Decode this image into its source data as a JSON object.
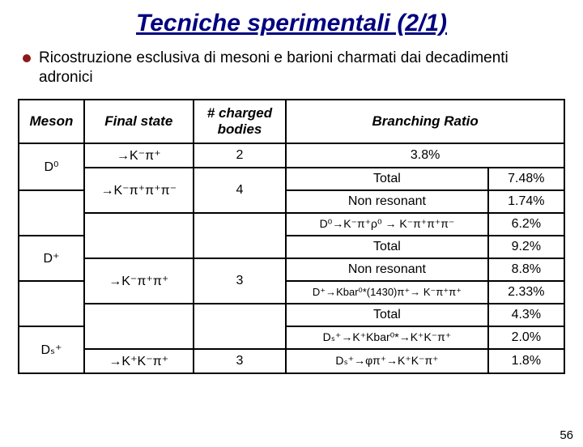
{
  "title": "Tecniche sperimentali (2/1)",
  "subtitle": "Ricostruzione esclusiva di mesoni e barioni charmati dai decadimenti adronici",
  "colors": {
    "title_color": "#000080",
    "bullet_color": "#8b1a1a",
    "border_color": "#000000",
    "background": "#ffffff"
  },
  "headers": {
    "meson": "Meson",
    "final_state": "Final state",
    "bodies": "# charged bodies",
    "br": "Branching Ratio"
  },
  "rows": {
    "d0_meson": "D⁰",
    "d0_fs1": "→K⁻π⁺",
    "d0_b1": "2",
    "d0_br1": "3.8%",
    "d0_total_lab": "Total",
    "d0_total_val": "7.48%",
    "d0_fs2": "→K⁻π⁺π⁺π⁻",
    "d0_b2": "4",
    "d0_nr_lab": "Non resonant",
    "d0_nr_val": "1.74%",
    "d0_ch_lab": "D⁰→K⁻π⁺ρ⁰ → K⁻π⁺π⁺π⁻",
    "d0_ch_val": "6.2%",
    "dp_total_lab": "Total",
    "dp_total_val": "9.2%",
    "dp_meson": "D⁺",
    "dp_fs": "→K⁻π⁺π⁺",
    "dp_b": "3",
    "dp_nr_lab": "Non resonant",
    "dp_nr_val": "8.8%",
    "dp_ch_lab": "D⁺→Kbar⁰*(1430)π⁺→ K⁻π⁺π⁺",
    "dp_ch_val": "2.33%",
    "ds_total_lab": "Total",
    "ds_total_val": "4.3%",
    "ds_meson": "Dₛ⁺",
    "ds_fs": "→K⁺K⁻π⁺",
    "ds_b": "3",
    "ds_ch1_lab": "Dₛ⁺→K⁺Kbar⁰*→K⁺K⁻π⁺",
    "ds_ch1_val": "2.0%",
    "ds_ch2_lab": "Dₛ⁺→φπ⁺→K⁺K⁻π⁺",
    "ds_ch2_val": "1.8%"
  },
  "slide_number": "56"
}
